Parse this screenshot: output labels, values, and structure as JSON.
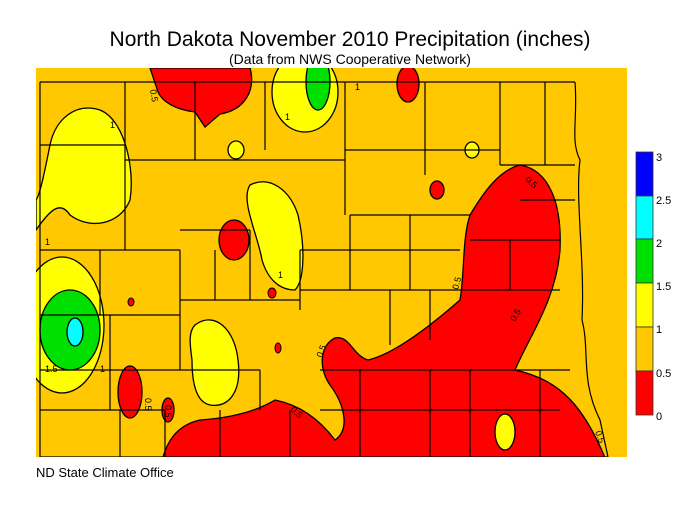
{
  "title": "North Dakota November 2010 Precipitation (inches)",
  "subtitle": "(Data from NWS Cooperative Network)",
  "credit": "ND State Climate Office",
  "legend": {
    "labels": [
      "3",
      "2.5",
      "2",
      "1.5",
      "1",
      "0.5",
      "0"
    ],
    "bands": [
      {
        "range": "2.5-3",
        "color": "#0000FF"
      },
      {
        "range": "2-2.5",
        "color": "#00FFFF"
      },
      {
        "range": "1.5-2",
        "color": "#00E000"
      },
      {
        "range": "1-1.5",
        "color": "#FFFF00"
      },
      {
        "range": "0.5-1",
        "color": "#FFC800"
      },
      {
        "range": "0-0.5",
        "color": "#FF0000"
      }
    ]
  },
  "contour_labels": [
    "0.5",
    "1",
    "1",
    "1",
    "1",
    "1",
    "1.5",
    "1",
    "0.5",
    "0.5",
    "0.5",
    "0.5",
    "0.5",
    "0.5",
    "0.5",
    "0.5"
  ]
}
